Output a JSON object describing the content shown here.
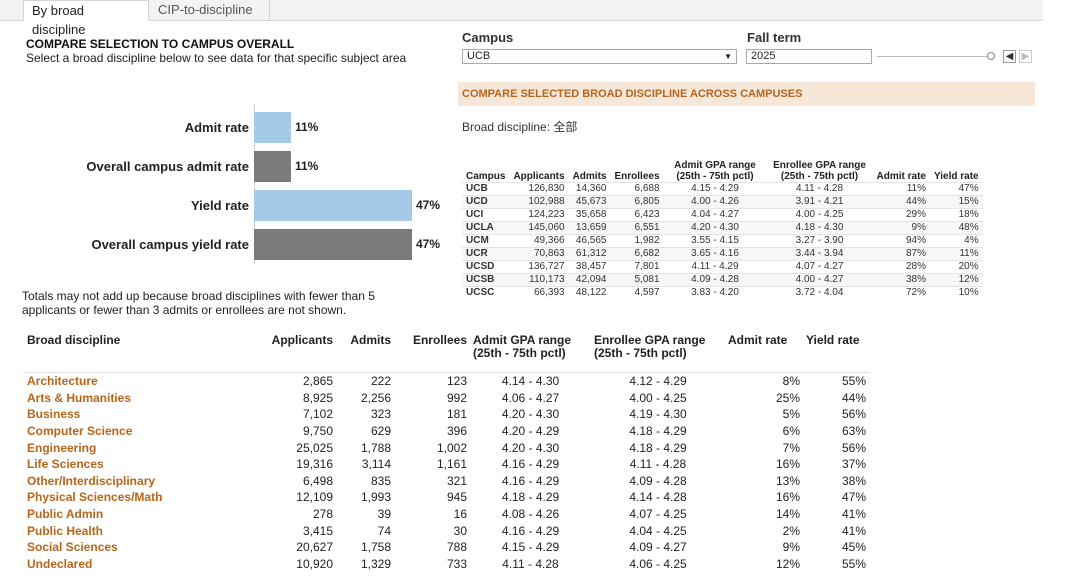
{
  "tabs": [
    {
      "label": "By broad discipline",
      "active": true
    },
    {
      "label": "CIP-to-discipline",
      "active": false
    }
  ],
  "header": {
    "title": "COMPARE SELECTION TO CAMPUS OVERALL",
    "subtitle": "Select a broad discipline below to see data for that specific subject area"
  },
  "filters": {
    "campus": {
      "label": "Campus",
      "value": "UCB"
    },
    "fall_term": {
      "label": "Fall term",
      "value": "2025",
      "slider_position_fraction": 1.0
    }
  },
  "colors": {
    "accent_bar": "#a3cbe8",
    "campus_bar": "#7b7b7b",
    "banner_bg": "#f6e7d9",
    "link": "#b8651a"
  },
  "icons": {
    "dropdown": "chevron-down-icon",
    "prev": "chevron-left-icon",
    "next": "chevron-right-icon"
  },
  "compare_banner": "COMPARE SELECTED BROAD DISCIPLINE ACROSS CAMPUSES",
  "broad_discipline_label": "Broad discipline: 全部",
  "chart_data": {
    "type": "bar",
    "orientation": "horizontal",
    "categories": [
      "Admit rate",
      "Overall campus admit rate",
      "Yield rate",
      "Overall campus yield rate"
    ],
    "values": [
      11,
      11,
      47,
      47
    ],
    "value_labels": [
      "11%",
      "11%",
      "47%",
      "47%"
    ],
    "xlim": [
      0,
      50
    ],
    "grid": false
  },
  "note": "Totals may not add up because broad disciplines with fewer than 5 applicants or fewer than 3 admits or enrollees are not shown.",
  "campus_table": {
    "headers": [
      "Campus",
      "Applicants",
      "Admits",
      "Enrollees",
      "Admit GPA range (25th - 75th pctl)",
      "Enrollee GPA range (25th - 75th pctl)",
      "Admit rate",
      "Yield rate"
    ],
    "rows": [
      [
        "UCB",
        "126,830",
        "14,360",
        "6,688",
        "4.15 - 4.29",
        "4.11 - 4.28",
        "11%",
        "47%"
      ],
      [
        "UCD",
        "102,988",
        "45,673",
        "6,805",
        "4.00 - 4.26",
        "3.91 - 4.21",
        "44%",
        "15%"
      ],
      [
        "UCI",
        "124,223",
        "35,658",
        "6,423",
        "4.04 - 4.27",
        "4.00 - 4.25",
        "29%",
        "18%"
      ],
      [
        "UCLA",
        "145,060",
        "13,659",
        "6,551",
        "4.20 - 4.30",
        "4.18 - 4.30",
        "9%",
        "48%"
      ],
      [
        "UCM",
        "49,366",
        "46,565",
        "1,982",
        "3.55 - 4.15",
        "3.27 - 3.90",
        "94%",
        "4%"
      ],
      [
        "UCR",
        "70,863",
        "61,312",
        "6,682",
        "3.65 - 4.16",
        "3.44 - 3.94",
        "87%",
        "11%"
      ],
      [
        "UCSD",
        "136,727",
        "38,457",
        "7,801",
        "4.11 - 4.29",
        "4.07 - 4.27",
        "28%",
        "20%"
      ],
      [
        "UCSB",
        "110,173",
        "42,094",
        "5,081",
        "4.09 - 4.28",
        "4.00 - 4.27",
        "38%",
        "12%"
      ],
      [
        "UCSC",
        "66,393",
        "48,122",
        "4,597",
        "3.83 - 4.20",
        "3.72 - 4.04",
        "72%",
        "10%"
      ]
    ]
  },
  "discipline_table": {
    "headers": [
      "Broad discipline",
      "Applicants",
      "Admits",
      "Enrollees",
      "Admit GPA range (25th - 75th pctl)",
      "Enrollee GPA range (25th - 75th pctl)",
      "Admit rate",
      "Yield rate"
    ],
    "rows": [
      [
        "Architecture",
        "2,865",
        "222",
        "123",
        "4.14 - 4.30",
        "4.12 - 4.29",
        "8%",
        "55%"
      ],
      [
        "Arts & Humanities",
        "8,925",
        "2,256",
        "992",
        "4.06 - 4.27",
        "4.00 - 4.25",
        "25%",
        "44%"
      ],
      [
        "Business",
        "7,102",
        "323",
        "181",
        "4.20 - 4.30",
        "4.19 - 4.30",
        "5%",
        "56%"
      ],
      [
        "Computer Science",
        "9,750",
        "629",
        "396",
        "4.20 - 4.29",
        "4.18 - 4.29",
        "6%",
        "63%"
      ],
      [
        "Engineering",
        "25,025",
        "1,788",
        "1,002",
        "4.20 - 4.30",
        "4.18 - 4.29",
        "7%",
        "56%"
      ],
      [
        "Life Sciences",
        "19,316",
        "3,114",
        "1,161",
        "4.16 - 4.29",
        "4.11 - 4.28",
        "16%",
        "37%"
      ],
      [
        "Other/Interdisciplinary",
        "6,498",
        "835",
        "321",
        "4.16 - 4.29",
        "4.09 - 4.28",
        "13%",
        "38%"
      ],
      [
        "Physical Sciences/Math",
        "12,109",
        "1,993",
        "945",
        "4.18 - 4.29",
        "4.14 - 4.28",
        "16%",
        "47%"
      ],
      [
        "Public Admin",
        "278",
        "39",
        "16",
        "4.08 - 4.26",
        "4.07 - 4.25",
        "14%",
        "41%"
      ],
      [
        "Public Health",
        "3,415",
        "74",
        "30",
        "4.16 - 4.29",
        "4.04 - 4.25",
        "2%",
        "41%"
      ],
      [
        "Social Sciences",
        "20,627",
        "1,758",
        "788",
        "4.15 - 4.29",
        "4.09 - 4.27",
        "9%",
        "45%"
      ],
      [
        "Undeclared",
        "10,920",
        "1,329",
        "733",
        "4.11 - 4.28",
        "4.06 - 4.25",
        "12%",
        "55%"
      ]
    ]
  }
}
